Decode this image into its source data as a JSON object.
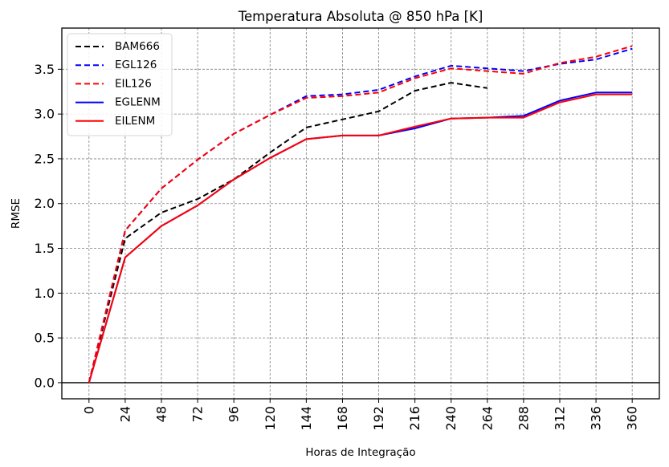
{
  "chart_data": {
    "type": "line",
    "title": "Temperatura Absoluta @ 850 hPa [K]",
    "xlabel": "Horas de Integração",
    "ylabel": "RMSE",
    "xlim": [
      -18,
      378
    ],
    "ylim": [
      -0.18,
      3.96
    ],
    "x_ticks": [
      0,
      24,
      48,
      72,
      96,
      120,
      144,
      168,
      192,
      216,
      240,
      264,
      288,
      312,
      336,
      360
    ],
    "x_tick_labels": [
      "0",
      "24",
      "48",
      "72",
      "96",
      "120",
      "144",
      "168",
      "192",
      "216",
      "240",
      "264",
      "288",
      "312",
      "336",
      "360"
    ],
    "y_ticks": [
      0.0,
      0.5,
      1.0,
      1.5,
      2.0,
      2.5,
      3.0,
      3.5
    ],
    "y_tick_labels": [
      "0.0",
      "0.5",
      "1.0",
      "1.5",
      "2.0",
      "2.5",
      "3.0",
      "3.5"
    ],
    "grid": true,
    "zero_line": true,
    "legend_position": "top-left",
    "series": [
      {
        "name": "BAM666",
        "color": "#000000",
        "style": "dashed",
        "x": [
          0,
          24,
          48,
          72,
          96,
          120,
          144,
          168,
          192,
          216,
          240,
          264
        ],
        "values": [
          0.0,
          1.61,
          1.9,
          2.05,
          2.27,
          2.57,
          2.85,
          2.94,
          3.03,
          3.26,
          3.35,
          3.29
        ]
      },
      {
        "name": "EGL126",
        "color": "#0000ff",
        "style": "dashed",
        "x": [
          0,
          24,
          48,
          72,
          96,
          120,
          144,
          168,
          192,
          216,
          240,
          264,
          288,
          312,
          336,
          360
        ],
        "values": [
          0.0,
          1.7,
          2.17,
          2.49,
          2.78,
          2.99,
          3.2,
          3.22,
          3.27,
          3.42,
          3.54,
          3.51,
          3.48,
          3.56,
          3.61,
          3.73
        ]
      },
      {
        "name": "EIL126",
        "color": "#ff0000",
        "style": "dashed",
        "x": [
          0,
          24,
          48,
          72,
          96,
          120,
          144,
          168,
          192,
          216,
          240,
          264,
          288,
          312,
          336,
          360
        ],
        "values": [
          0.0,
          1.7,
          2.17,
          2.49,
          2.78,
          2.99,
          3.18,
          3.2,
          3.24,
          3.4,
          3.51,
          3.48,
          3.45,
          3.57,
          3.64,
          3.76
        ]
      },
      {
        "name": "EGLENM",
        "color": "#0000ff",
        "style": "solid",
        "x": [
          0,
          24,
          48,
          72,
          96,
          120,
          144,
          168,
          192,
          216,
          240,
          264,
          288,
          312,
          336,
          360
        ],
        "values": [
          0.0,
          1.4,
          1.75,
          1.98,
          2.27,
          2.51,
          2.72,
          2.76,
          2.76,
          2.84,
          2.95,
          2.96,
          2.98,
          3.15,
          3.24,
          3.24
        ]
      },
      {
        "name": "EILENM",
        "color": "#ff0000",
        "style": "solid",
        "x": [
          0,
          24,
          48,
          72,
          96,
          120,
          144,
          168,
          192,
          216,
          240,
          264,
          288,
          312,
          336,
          360
        ],
        "values": [
          0.0,
          1.4,
          1.75,
          1.98,
          2.27,
          2.51,
          2.72,
          2.76,
          2.76,
          2.86,
          2.95,
          2.96,
          2.96,
          3.13,
          3.22,
          3.22
        ]
      }
    ]
  }
}
